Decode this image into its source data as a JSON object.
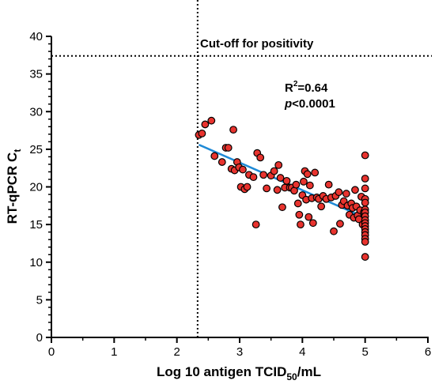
{
  "chart_data": {
    "type": "scatter",
    "title": "",
    "xlabel": {
      "main": "Log 10 antigen TCID",
      "sub": "50",
      "tail": "/mL"
    },
    "ylabel": {
      "main": "RT-qPCR C",
      "sub": "t"
    },
    "xlim": [
      0,
      6
    ],
    "ylim": [
      0,
      40
    ],
    "xticks": [
      0,
      1,
      2,
      3,
      4,
      5,
      6
    ],
    "yticks": [
      0,
      5,
      10,
      15,
      20,
      25,
      30,
      35,
      40
    ],
    "xtick_labels": [
      "0",
      "1",
      "2",
      "3",
      "4",
      "5",
      "6"
    ],
    "ytick_labels": [
      "0",
      "5",
      "10",
      "15",
      "20",
      "25",
      "30",
      "35",
      "40"
    ],
    "grid": false,
    "cutoff": {
      "y": 37.4,
      "label": "Cut-off for positivity"
    },
    "vertical_ref": {
      "x": 2.33
    },
    "annotations": {
      "r2": {
        "main": "R",
        "sup": "2",
        "tail": "=0.64"
      },
      "p": {
        "italic": "p",
        "tail": "<0.0001"
      }
    },
    "regression": {
      "x": [
        2.35,
        5.0
      ],
      "y": [
        25.6,
        15.9
      ],
      "color": "#1f8ad6"
    },
    "marker": {
      "fill": "#e8332e",
      "stroke": "#000000"
    },
    "points": [
      [
        2.35,
        26.9
      ],
      [
        2.4,
        27.1
      ],
      [
        2.45,
        28.3
      ],
      [
        2.55,
        28.8
      ],
      [
        2.6,
        24.1
      ],
      [
        2.72,
        23.3
      ],
      [
        2.78,
        25.2
      ],
      [
        2.82,
        25.2
      ],
      [
        2.87,
        22.4
      ],
      [
        2.9,
        27.6
      ],
      [
        2.92,
        22.2
      ],
      [
        2.96,
        23.3
      ],
      [
        2.99,
        22.6
      ],
      [
        3.02,
        20.0
      ],
      [
        3.05,
        22.3
      ],
      [
        3.08,
        19.7
      ],
      [
        3.12,
        20.0
      ],
      [
        3.15,
        21.6
      ],
      [
        3.22,
        21.3
      ],
      [
        3.26,
        15.0
      ],
      [
        3.28,
        24.5
      ],
      [
        3.33,
        23.9
      ],
      [
        3.38,
        21.6
      ],
      [
        3.43,
        19.8
      ],
      [
        3.5,
        21.5
      ],
      [
        3.55,
        22.1
      ],
      [
        3.6,
        19.6
      ],
      [
        3.62,
        22.9
      ],
      [
        3.65,
        21.2
      ],
      [
        3.68,
        17.3
      ],
      [
        3.72,
        19.9
      ],
      [
        3.75,
        20.8
      ],
      [
        3.8,
        19.9
      ],
      [
        3.83,
        19.9
      ],
      [
        3.87,
        19.5
      ],
      [
        3.9,
        20.3
      ],
      [
        3.93,
        17.8
      ],
      [
        3.95,
        16.3
      ],
      [
        3.97,
        15.0
      ],
      [
        4.0,
        18.9
      ],
      [
        4.02,
        20.7
      ],
      [
        4.04,
        22.1
      ],
      [
        4.06,
        18.3
      ],
      [
        4.08,
        21.7
      ],
      [
        4.1,
        16.0
      ],
      [
        4.12,
        20.2
      ],
      [
        4.15,
        18.5
      ],
      [
        4.17,
        15.2
      ],
      [
        4.2,
        21.9
      ],
      [
        4.23,
        18.6
      ],
      [
        4.26,
        18.4
      ],
      [
        4.3,
        17.4
      ],
      [
        4.33,
        18.8
      ],
      [
        4.38,
        18.4
      ],
      [
        4.42,
        20.3
      ],
      [
        4.46,
        18.6
      ],
      [
        4.5,
        14.1
      ],
      [
        4.53,
        18.8
      ],
      [
        4.58,
        19.3
      ],
      [
        4.6,
        15.1
      ],
      [
        4.63,
        17.6
      ],
      [
        4.66,
        18.1
      ],
      [
        4.7,
        19.1
      ],
      [
        4.72,
        17.5
      ],
      [
        4.75,
        16.3
      ],
      [
        4.78,
        17.8
      ],
      [
        4.8,
        17.2
      ],
      [
        4.82,
        15.9
      ],
      [
        4.84,
        19.6
      ],
      [
        4.86,
        17.4
      ],
      [
        4.88,
        16.2
      ],
      [
        4.9,
        15.7
      ],
      [
        4.92,
        16.9
      ],
      [
        4.94,
        18.7
      ],
      [
        4.96,
        15.0
      ],
      [
        4.98,
        16.6
      ],
      [
        5.0,
        24.2
      ],
      [
        5.0,
        21.1
      ],
      [
        5.0,
        19.8
      ],
      [
        5.0,
        18.4
      ],
      [
        5.0,
        17.9
      ],
      [
        5.0,
        17.0
      ],
      [
        5.0,
        16.6
      ],
      [
        5.0,
        16.1
      ],
      [
        5.0,
        15.6
      ],
      [
        5.0,
        15.2
      ],
      [
        5.0,
        14.8
      ],
      [
        5.0,
        14.4
      ],
      [
        5.0,
        14.0
      ],
      [
        5.0,
        13.6
      ],
      [
        5.0,
        13.1
      ],
      [
        5.0,
        12.7
      ],
      [
        5.0,
        10.7
      ]
    ]
  }
}
